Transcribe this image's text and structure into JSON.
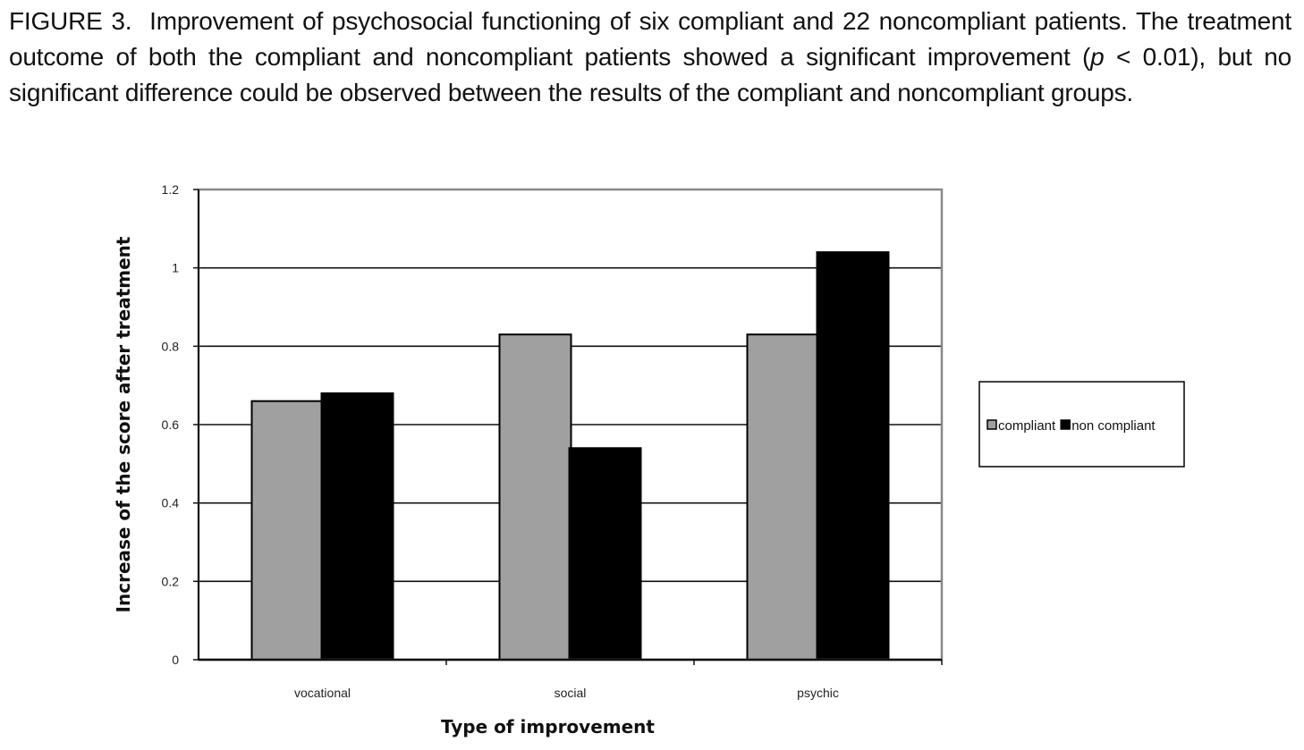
{
  "caption": {
    "figure_label": "FIGURE 3.",
    "sentence1": "Improvement of psychosocial functioning of six compliant and 22 noncompliant patients.",
    "sentence2_before": "The treatment outcome of both the compliant and noncompliant patients showed a significant improvement (",
    "p_symbol": "p",
    "p_rest": " < 0.01), but no significant difference could be observed between the results of the compliant and noncompliant groups."
  },
  "chart_data": {
    "type": "bar",
    "categories": [
      "vocational",
      "social",
      "psychic"
    ],
    "series": [
      {
        "name": "compliant",
        "values": [
          0.66,
          0.83,
          0.83
        ],
        "color": "#a0a0a0"
      },
      {
        "name": "non compliant",
        "values": [
          0.68,
          0.54,
          1.04
        ],
        "color": "#000000"
      }
    ],
    "xlabel": "Type of improvement",
    "ylabel": "Increase of the score after treatment",
    "ylim": [
      0,
      1.2
    ],
    "yticks": [
      "0",
      "0.2",
      "0.4",
      "0.6",
      "0.8",
      "1",
      "1.2"
    ],
    "grid": true,
    "legend_position": "right"
  }
}
